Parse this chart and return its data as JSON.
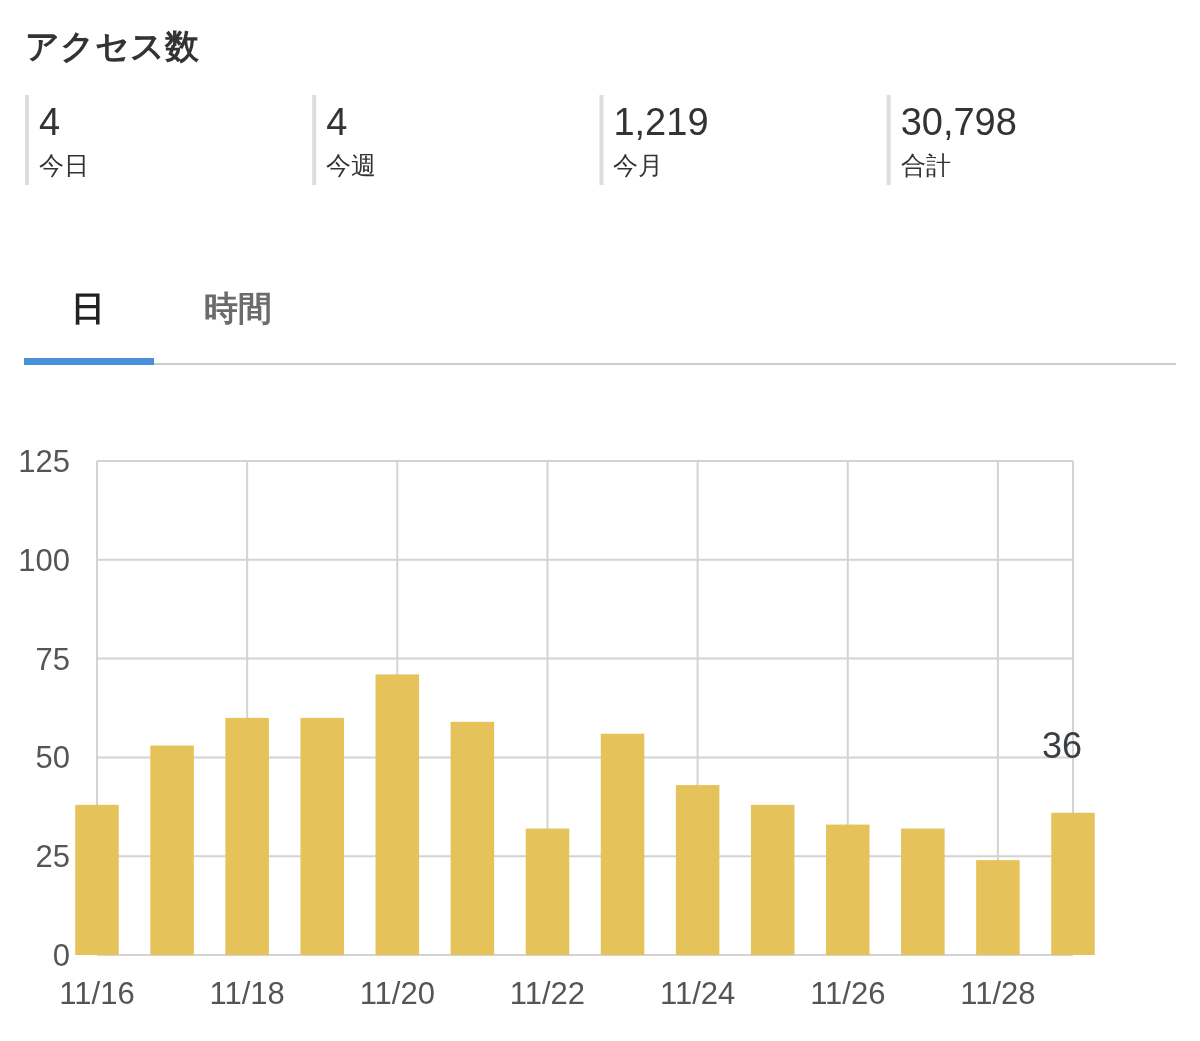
{
  "chart_data": [
    {
      "type": "other",
      "title": "アクセス数",
      "categories": [
        "今日",
        "今週",
        "今月",
        "合計"
      ],
      "values": [
        4,
        4,
        1219,
        30798
      ],
      "value_labels": [
        "4",
        "4",
        "1,219",
        "30,798"
      ]
    },
    {
      "type": "bar",
      "annotations": [
        "日",
        "時間"
      ],
      "categories": [
        "11/16",
        null,
        "11/18",
        null,
        "11/20",
        null,
        "11/22",
        null,
        "11/24",
        null,
        "11/26",
        null,
        "11/28",
        null
      ],
      "values": [
        38,
        53,
        60,
        60,
        71,
        59,
        32,
        56,
        43,
        38,
        33,
        32,
        24,
        36
      ],
      "value_labels": [
        null,
        null,
        null,
        null,
        null,
        null,
        null,
        null,
        null,
        null,
        null,
        null,
        null,
        "36"
      ],
      "color": "#e5c35a",
      "ylim": [
        0,
        125
      ],
      "yticks": [
        0,
        25,
        50,
        75,
        100,
        125
      ],
      "grid": true
    }
  ]
}
